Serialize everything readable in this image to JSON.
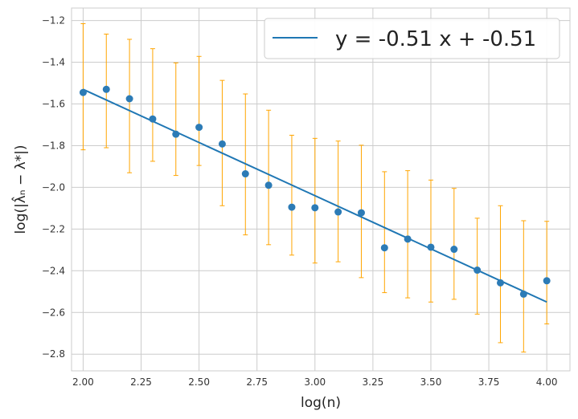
{
  "chart_data": {
    "type": "scatter",
    "xlabel": "log(n)",
    "ylabel": "log(|λ̂ₙ − λ*|)",
    "xlim": [
      1.95,
      4.1
    ],
    "ylim": [
      -2.88,
      -1.14
    ],
    "xticks": [
      2.0,
      2.25,
      2.5,
      2.75,
      3.0,
      3.25,
      3.5,
      3.75,
      4.0
    ],
    "xtick_labels": [
      "2.00",
      "2.25",
      "2.50",
      "2.75",
      "3.00",
      "3.25",
      "3.50",
      "3.75",
      "4.00"
    ],
    "yticks": [
      -2.8,
      -2.6,
      -2.4,
      -2.2,
      -2.0,
      -1.8,
      -1.6,
      -1.4,
      -1.2
    ],
    "ytick_labels": [
      "−2.8",
      "−2.6",
      "−2.4",
      "−2.2",
      "−2.0",
      "−1.8",
      "−1.6",
      "−1.4",
      "−1.2"
    ],
    "grid": true,
    "legend_position": "top-right",
    "colors": {
      "points": "#2c7bb6",
      "fit_line": "#1f77b4",
      "error_bars": "#ffa500",
      "grid": "#cccccc"
    },
    "points": {
      "x": [
        2.0,
        2.1,
        2.2,
        2.3,
        2.4,
        2.5,
        2.6,
        2.7,
        2.8,
        2.9,
        3.0,
        3.1,
        3.2,
        3.3,
        3.4,
        3.5,
        3.6,
        3.7,
        3.8,
        3.9,
        4.0
      ],
      "y": [
        -1.545,
        -1.53,
        -1.575,
        -1.672,
        -1.745,
        -1.712,
        -1.792,
        -1.935,
        -1.99,
        -2.095,
        -2.098,
        -2.118,
        -2.122,
        -2.29,
        -2.248,
        -2.287,
        -2.297,
        -2.397,
        -2.458,
        -2.512,
        -2.448
      ],
      "y_err_low": [
        -1.82,
        -1.81,
        -1.93,
        -1.875,
        -1.943,
        -1.895,
        -2.088,
        -2.228,
        -2.275,
        -2.325,
        -2.363,
        -2.357,
        -2.433,
        -2.505,
        -2.53,
        -2.55,
        -2.537,
        -2.608,
        -2.745,
        -2.79,
        -2.655
      ],
      "y_err_high": [
        -1.215,
        -1.265,
        -1.29,
        -1.335,
        -1.403,
        -1.372,
        -1.487,
        -1.552,
        -1.63,
        -1.75,
        -1.765,
        -1.778,
        -1.798,
        -1.925,
        -1.92,
        -1.965,
        -2.005,
        -2.148,
        -2.088,
        -2.16,
        -2.163
      ]
    },
    "fit": {
      "label": "y = -0.51 x + -0.51",
      "x": [
        2.0,
        4.0
      ],
      "y": [
        -1.53,
        -2.55
      ]
    }
  }
}
